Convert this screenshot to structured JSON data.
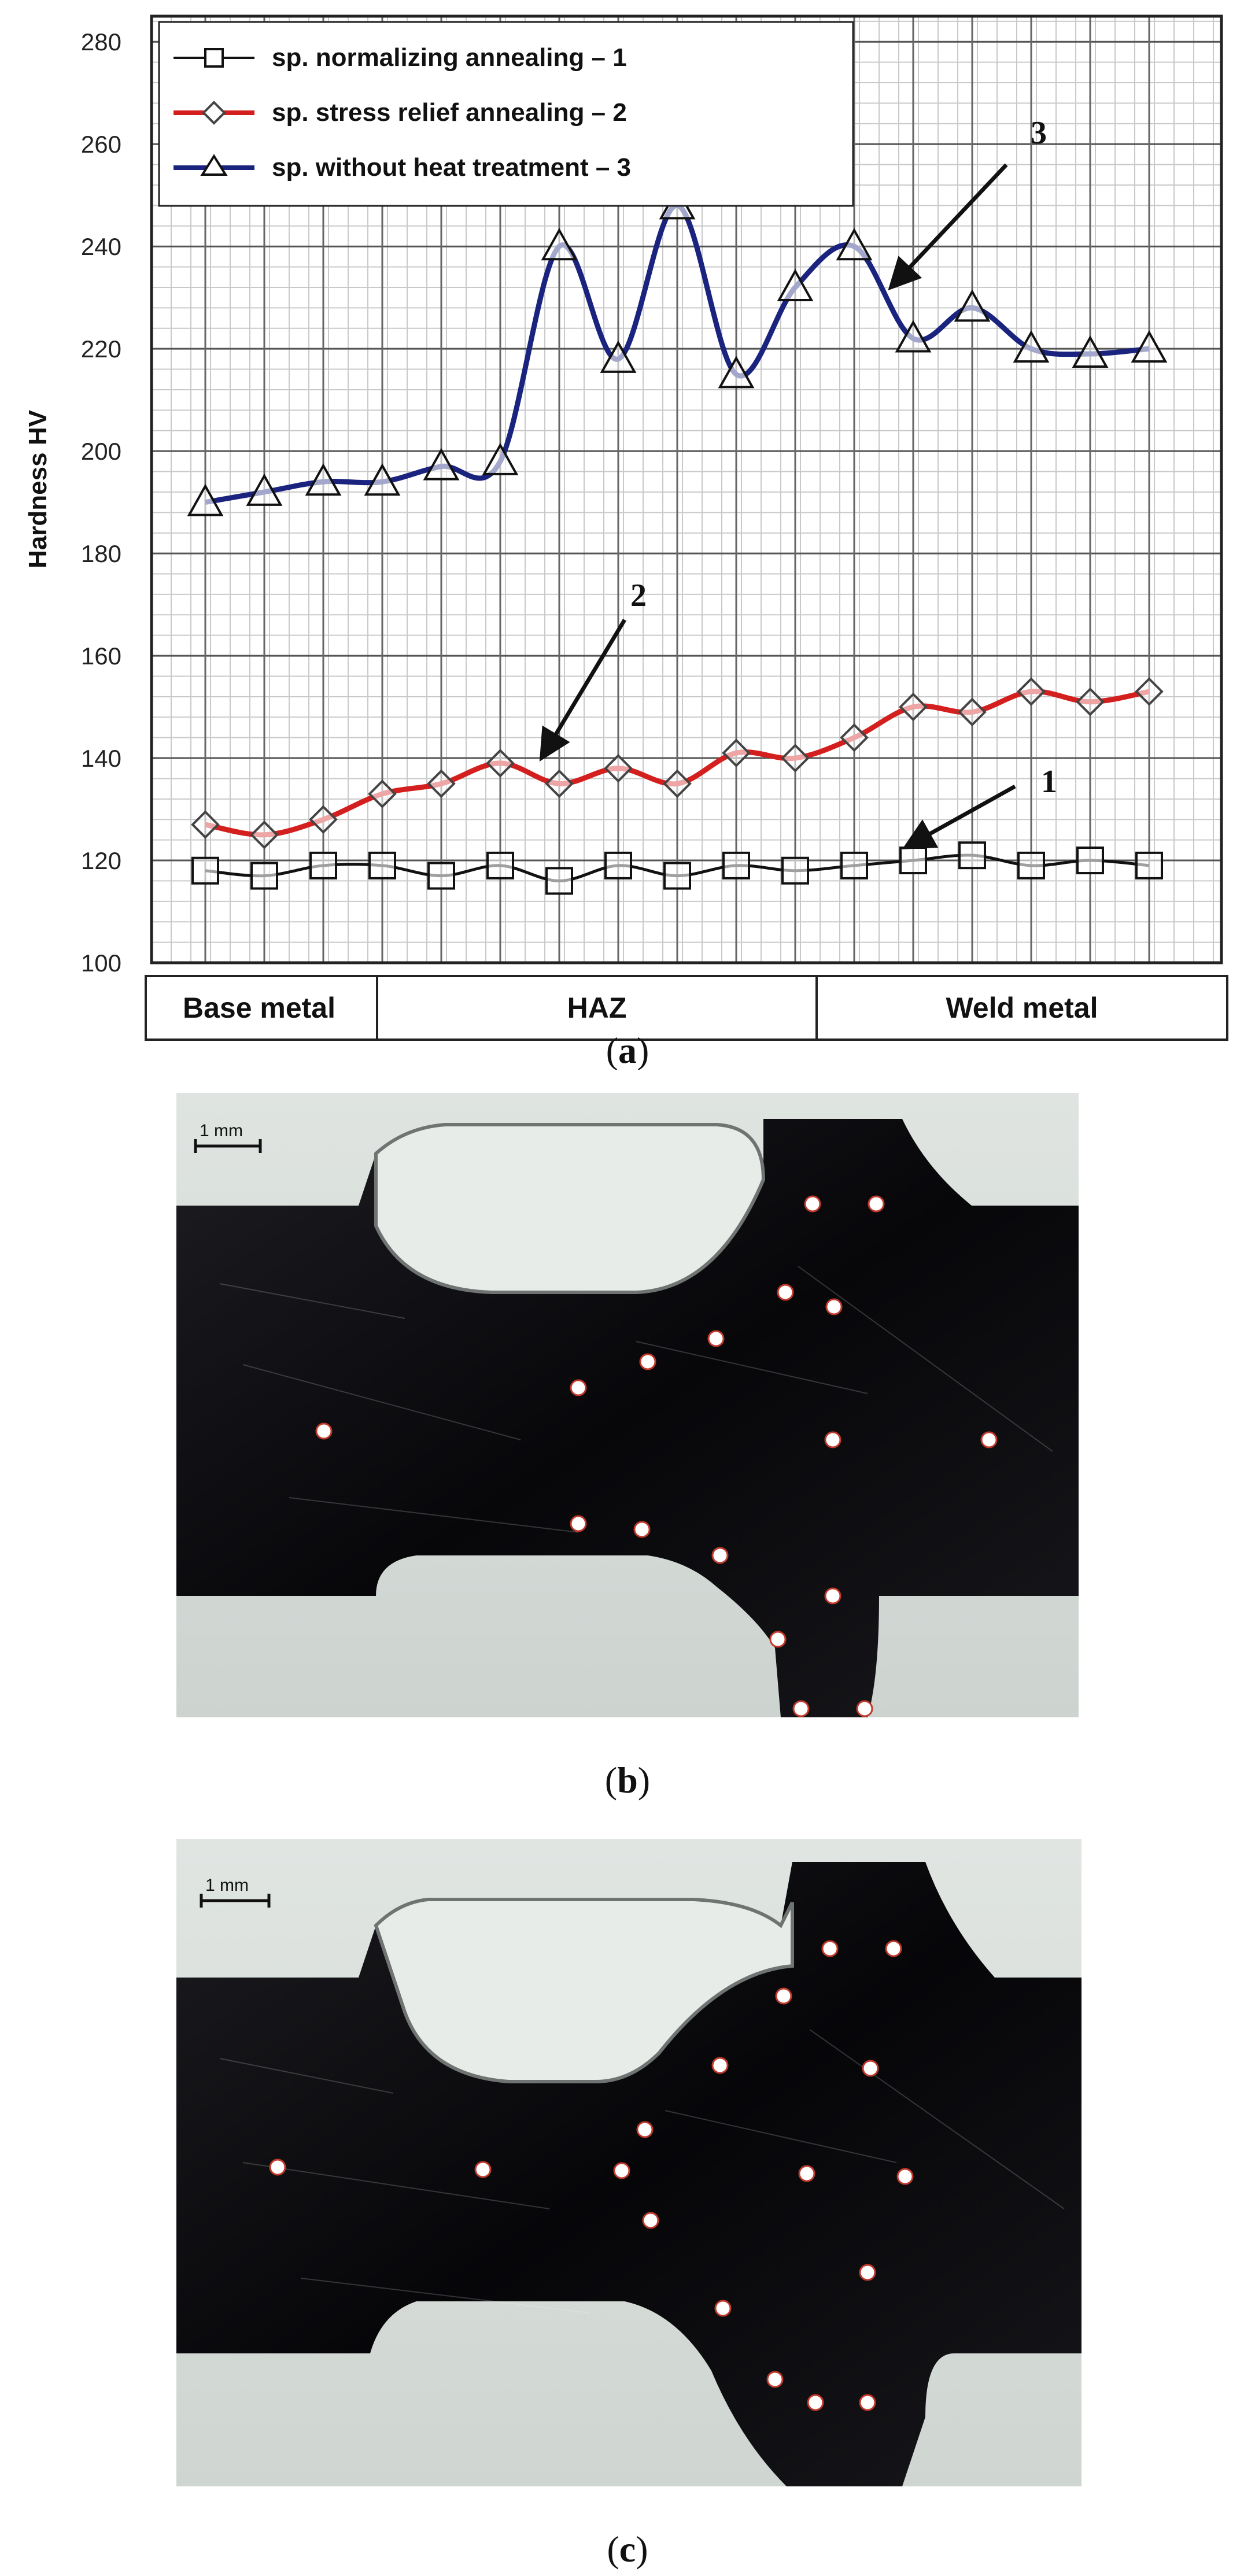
{
  "chart_data": {
    "type": "line",
    "title": "",
    "xlabel": "",
    "ylabel": "Hardness HV",
    "ylim": [
      100,
      285
    ],
    "y_ticks": [
      100,
      120,
      140,
      160,
      180,
      200,
      220,
      240,
      260,
      280
    ],
    "grid": true,
    "legend_position": "top-left",
    "point_count": 17,
    "zones": [
      "Base metal",
      "HAZ",
      "Weld metal"
    ],
    "zone_point_split": [
      3,
      11
    ],
    "series": [
      {
        "name": "sp. normalizing annealing – 1",
        "marker": "square",
        "color": "#111111",
        "values": [
          118,
          117,
          119,
          119,
          117,
          119,
          116,
          119,
          117,
          119,
          118,
          119,
          120,
          121,
          119,
          120,
          119
        ]
      },
      {
        "name": "sp. stress relief annealing – 2",
        "marker": "diamond",
        "color": "#d41f1f",
        "values": [
          127,
          125,
          128,
          133,
          135,
          139,
          135,
          138,
          135,
          141,
          140,
          144,
          150,
          149,
          153,
          151,
          153
        ]
      },
      {
        "name": "sp. without heat treatment – 3",
        "marker": "triangle",
        "color": "#1a237e",
        "values": [
          190,
          192,
          194,
          194,
          197,
          198,
          240,
          218,
          248,
          215,
          232,
          240,
          222,
          228,
          220,
          219,
          220
        ]
      }
    ],
    "annotations": [
      "1",
      "2",
      "3"
    ]
  },
  "captions": {
    "a_open": "(",
    "a_letter": "a",
    "a_close": ")",
    "b_open": "(",
    "b_letter": "b",
    "b_close": ")",
    "c_open": "(",
    "c_letter": "c",
    "c_close": ")"
  },
  "photos": {
    "b_scale": "1 mm",
    "c_scale": "1 mm",
    "background_color": "#e5e9e6",
    "metal_color": "#0c0c0f",
    "dot_color": "#ffffff",
    "dot_outline": "#c0392b"
  }
}
